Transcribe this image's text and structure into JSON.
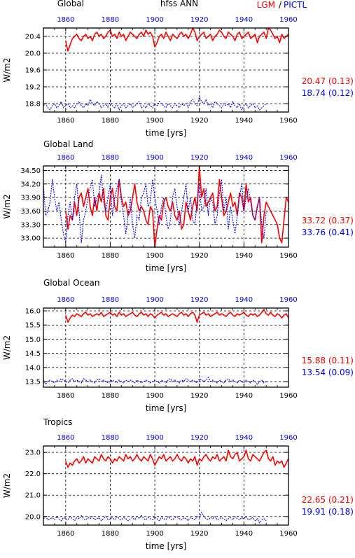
{
  "header": {
    "left_title": "Global",
    "center_title": "hfss ANN",
    "legend_lgm": "LGM",
    "legend_sep": "/",
    "legend_pictl": "PICTL"
  },
  "colors": {
    "lgm": "#ff0000",
    "pictl": "#0000ff",
    "axis": "#000000"
  },
  "chart_data": [
    {
      "type": "line",
      "title": "Global",
      "xlabel": "time [yrs]",
      "ylabel": "W/m2",
      "xlim": [
        1850,
        1960
      ],
      "ylim": [
        18.6,
        20.6
      ],
      "x_ticks_bottom": [
        "1860",
        "1880",
        "1900",
        "1920",
        "1940",
        "1960"
      ],
      "x_ticks_top": [
        "1860",
        "1880",
        "1900",
        "1920",
        "1940",
        "1960"
      ],
      "y_ticks": [
        "20.4",
        "20.0",
        "19.6",
        "19.2",
        "18.8"
      ],
      "y_tick_values": [
        20.4,
        20.0,
        19.6,
        19.2,
        18.8
      ],
      "grid": true,
      "series": [
        {
          "name": "LGM",
          "x_start": 1860,
          "x_end": 1960,
          "values": [
            20.3,
            20.05,
            20.2,
            20.35,
            20.4,
            20.45,
            20.35,
            20.3,
            20.4,
            20.45,
            20.35,
            20.4,
            20.3,
            20.45,
            20.5,
            20.4,
            20.45,
            20.35,
            20.4,
            20.5,
            20.55,
            20.4,
            20.45,
            20.35,
            20.5,
            20.4,
            20.45,
            20.3,
            20.4,
            20.5,
            20.45,
            20.4,
            20.35,
            20.45,
            20.5,
            20.4,
            20.55,
            20.45,
            20.5,
            20.4,
            20.15,
            20.25,
            20.4,
            20.45,
            20.35,
            20.5,
            20.4,
            20.3,
            20.45,
            20.4,
            20.35,
            20.45,
            20.5,
            20.4,
            20.45,
            20.35,
            20.45,
            20.6,
            20.5,
            20.3,
            20.4,
            20.45,
            20.5,
            20.35,
            20.4,
            20.45,
            20.3,
            20.4,
            20.45,
            20.55,
            20.5,
            20.4,
            20.35,
            20.5,
            20.45,
            20.4,
            20.3,
            20.45,
            20.5,
            20.35,
            20.4,
            20.45,
            20.5,
            20.35,
            20.4,
            20.45,
            20.25,
            20.4,
            20.45,
            20.5,
            20.35,
            20.6,
            20.55,
            20.45,
            20.35,
            20.4,
            20.25,
            20.45,
            20.35,
            20.4,
            20.45
          ],
          "mean": "20.47",
          "std": "(0.13)"
        },
        {
          "name": "PICTL",
          "x_start": 1850,
          "x_end": 1950,
          "values": [
            18.75,
            18.8,
            18.7,
            18.65,
            18.75,
            18.8,
            18.7,
            18.75,
            18.85,
            18.7,
            18.75,
            18.8,
            18.7,
            18.75,
            18.7,
            18.8,
            18.85,
            18.75,
            18.7,
            18.8,
            18.75,
            18.9,
            18.8,
            18.75,
            18.85,
            18.8,
            18.7,
            18.75,
            18.8,
            18.7,
            18.85,
            18.75,
            18.7,
            18.8,
            18.65,
            18.75,
            18.8,
            18.7,
            18.75,
            18.8,
            18.7,
            18.75,
            18.8,
            18.85,
            18.7,
            18.75,
            18.7,
            18.8,
            18.75,
            18.7,
            18.8,
            18.75,
            18.85,
            18.8,
            18.75,
            18.7,
            18.8,
            18.75,
            18.7,
            18.8,
            18.75,
            18.7,
            18.8,
            18.75,
            18.8,
            18.7,
            18.85,
            18.9,
            18.8,
            18.75,
            18.95,
            18.85,
            18.8,
            18.9,
            18.75,
            18.8,
            18.7,
            18.85,
            18.8,
            18.75,
            18.7,
            18.8,
            18.75,
            18.8,
            18.7,
            18.85,
            18.75,
            18.7,
            18.8,
            18.65,
            18.75,
            18.8,
            18.7,
            18.75,
            18.8,
            18.7,
            18.75,
            18.65,
            18.7,
            18.75,
            18.8
          ],
          "mean": "18.74",
          "std": "(0.12)"
        }
      ]
    },
    {
      "type": "line",
      "title": "Global Land",
      "xlabel": "time [yrs]",
      "ylabel": "W/m2",
      "xlim": [
        1850,
        1960
      ],
      "ylim": [
        32.8,
        34.6
      ],
      "x_ticks_bottom": [
        "1860",
        "1880",
        "1900",
        "1920",
        "1940",
        "1960"
      ],
      "x_ticks_top": [
        "1860",
        "1880",
        "1900",
        "1920",
        "1940",
        "1960"
      ],
      "y_ticks": [
        "34.50",
        "34.20",
        "33.90",
        "33.60",
        "33.30",
        "33.00"
      ],
      "y_tick_values": [
        34.5,
        34.2,
        33.9,
        33.6,
        33.3,
        33.0
      ],
      "grid": true,
      "series": [
        {
          "name": "LGM",
          "x_start": 1860,
          "x_end": 1960,
          "values": [
            33.6,
            33.2,
            33.5,
            33.4,
            33.8,
            33.5,
            33.9,
            34.0,
            33.7,
            33.9,
            34.1,
            33.7,
            33.5,
            33.9,
            33.6,
            34.0,
            33.8,
            34.1,
            33.5,
            33.4,
            33.9,
            34.1,
            33.7,
            33.6,
            34.3,
            33.9,
            33.7,
            33.8,
            33.5,
            33.6,
            33.9,
            34.2,
            33.8,
            33.6,
            33.7,
            33.6,
            33.4,
            33.3,
            33.7,
            33.6,
            32.8,
            33.2,
            33.5,
            33.4,
            33.8,
            33.9,
            33.7,
            33.6,
            33.8,
            33.5,
            33.4,
            33.6,
            33.2,
            33.3,
            33.8,
            33.6,
            33.4,
            33.7,
            33.9,
            33.6,
            34.6,
            33.9,
            34.1,
            33.7,
            33.8,
            33.9,
            34.0,
            33.6,
            33.7,
            34.3,
            33.9,
            33.5,
            33.6,
            33.8,
            34.0,
            33.7,
            33.8,
            33.5,
            34.0,
            33.9,
            33.6,
            34.2,
            33.8,
            33.9,
            33.5,
            33.4,
            33.7,
            33.9,
            32.9,
            33.5,
            33.8,
            33.7,
            33.6,
            33.5,
            33.4,
            33.3,
            33.0,
            32.9,
            33.4,
            33.9,
            33.8
          ],
          "mean": "33.72",
          "std": "(0.37)"
        },
        {
          "name": "PICTL",
          "x_start": 1850,
          "x_end": 1950,
          "values": [
            34.2,
            33.5,
            33.6,
            33.8,
            34.3,
            33.9,
            33.6,
            33.8,
            33.4,
            33.1,
            32.9,
            33.5,
            33.8,
            33.4,
            33.9,
            34.2,
            33.6,
            32.9,
            33.4,
            33.6,
            33.9,
            34.1,
            34.3,
            33.7,
            33.9,
            34.0,
            34.4,
            33.8,
            33.6,
            33.9,
            34.2,
            33.5,
            33.9,
            34.1,
            34.3,
            33.8,
            33.5,
            33.1,
            33.5,
            33.9,
            33.3,
            33.0,
            33.5,
            33.4,
            33.9,
            34.0,
            34.2,
            33.7,
            33.8,
            34.3,
            33.9,
            33.6,
            33.3,
            33.7,
            33.9,
            33.5,
            33.2,
            33.4,
            33.9,
            34.1,
            33.7,
            33.3,
            33.6,
            33.9,
            34.2,
            33.6,
            33.9,
            33.4,
            33.3,
            33.8,
            34.2,
            33.6,
            33.7,
            34.1,
            33.5,
            33.9,
            33.8,
            33.3,
            33.5,
            34.0,
            34.3,
            33.6,
            33.9,
            33.2,
            33.7,
            33.4,
            33.1,
            33.5,
            33.9,
            34.2,
            33.6,
            33.9,
            34.1,
            33.8,
            33.5,
            33.4,
            33.7,
            33.9,
            33.3,
            33.0,
            33.6
          ],
          "mean": "33.76",
          "std": "(0.41)"
        }
      ]
    },
    {
      "type": "line",
      "title": "Global Ocean",
      "xlabel": "time [yrs]",
      "ylabel": "W/m2",
      "xlim": [
        1850,
        1960
      ],
      "ylim": [
        13.3,
        16.1
      ],
      "x_ticks_bottom": [
        "1860",
        "1880",
        "1900",
        "1920",
        "1940",
        "1960"
      ],
      "x_ticks_top": [
        "1860",
        "1880",
        "1900",
        "1920",
        "1940",
        "1960"
      ],
      "y_ticks": [
        "16.0",
        "15.5",
        "15.0",
        "14.5",
        "14.0",
        "13.5"
      ],
      "y_tick_values": [
        16.0,
        15.5,
        15.0,
        14.5,
        14.0,
        13.5
      ],
      "grid": true,
      "series": [
        {
          "name": "LGM",
          "x_start": 1860,
          "x_end": 1960,
          "values": [
            15.85,
            15.6,
            15.75,
            15.85,
            15.8,
            15.9,
            15.85,
            15.8,
            15.9,
            15.95,
            15.85,
            15.9,
            15.8,
            15.85,
            15.9,
            15.85,
            15.95,
            15.8,
            15.85,
            15.9,
            15.95,
            15.85,
            15.9,
            15.8,
            15.95,
            15.85,
            15.9,
            15.8,
            15.85,
            15.9,
            15.95,
            15.85,
            15.8,
            15.9,
            15.95,
            15.85,
            15.9,
            15.8,
            15.9,
            15.85,
            15.75,
            15.85,
            15.9,
            15.95,
            15.85,
            15.9,
            15.8,
            15.85,
            15.9,
            15.85,
            15.8,
            15.9,
            15.95,
            15.85,
            15.9,
            15.8,
            15.9,
            15.95,
            15.85,
            15.6,
            15.85,
            15.9,
            15.95,
            15.85,
            15.9,
            15.8,
            15.85,
            15.9,
            15.95,
            15.85,
            15.9,
            15.85,
            15.8,
            15.9,
            15.95,
            15.85,
            15.8,
            15.9,
            15.85,
            15.9,
            15.95,
            15.85,
            15.8,
            15.9,
            15.85,
            15.9,
            15.8,
            15.85,
            15.95,
            16.05,
            15.9,
            15.85,
            15.95,
            15.85,
            15.8,
            15.9,
            15.85,
            15.75,
            15.85,
            15.9,
            15.75
          ],
          "mean": "15.88",
          "std": "(0.11)"
        },
        {
          "name": "PICTL",
          "x_start": 1850,
          "x_end": 1950,
          "values": [
            13.55,
            13.4,
            13.5,
            13.55,
            13.5,
            13.45,
            13.55,
            13.5,
            13.6,
            13.55,
            13.5,
            13.45,
            13.55,
            13.6,
            13.5,
            13.55,
            13.5,
            13.45,
            13.6,
            13.55,
            13.5,
            13.55,
            13.5,
            13.45,
            13.55,
            13.6,
            13.5,
            13.55,
            13.5,
            13.45,
            13.5,
            13.55,
            13.5,
            13.45,
            13.55,
            13.5,
            13.45,
            13.55,
            13.5,
            13.55,
            13.5,
            13.45,
            13.55,
            13.5,
            13.45,
            13.5,
            13.55,
            13.5,
            13.45,
            13.5,
            13.55,
            13.5,
            13.45,
            13.55,
            13.5,
            13.45,
            13.55,
            13.6,
            13.5,
            13.55,
            13.5,
            13.45,
            13.55,
            13.5,
            13.6,
            13.55,
            13.5,
            13.55,
            13.5,
            13.45,
            13.6,
            13.55,
            13.5,
            13.55,
            13.65,
            13.5,
            13.55,
            13.5,
            13.45,
            13.55,
            13.5,
            13.45,
            13.55,
            13.6,
            13.5,
            13.55,
            13.5,
            13.45,
            13.55,
            13.5,
            13.45,
            13.55,
            13.5,
            13.45,
            13.55,
            13.5,
            13.4,
            13.5,
            13.55,
            13.45,
            13.5
          ],
          "mean": "13.54",
          "std": "(0.09)"
        }
      ]
    },
    {
      "type": "line",
      "title": "Tropics",
      "xlabel": "time [yrs]",
      "ylabel": "W/m2",
      "xlim": [
        1850,
        1960
      ],
      "ylim": [
        19.6,
        23.3
      ],
      "x_ticks_bottom": [
        "1860",
        "1880",
        "1900",
        "1920",
        "1940",
        "1960"
      ],
      "x_ticks_top": [
        "1860",
        "1880",
        "1900",
        "1920",
        "1940",
        "1960"
      ],
      "y_ticks": [
        "23.0",
        "22.0",
        "21.0",
        "20.0"
      ],
      "y_tick_values": [
        23.0,
        22.0,
        21.0,
        20.0
      ],
      "grid": true,
      "series": [
        {
          "name": "LGM",
          "x_start": 1860,
          "x_end": 1960,
          "values": [
            22.6,
            22.3,
            22.5,
            22.4,
            22.6,
            22.7,
            22.5,
            22.6,
            22.8,
            22.5,
            22.7,
            22.6,
            22.5,
            22.8,
            22.7,
            22.6,
            22.9,
            22.7,
            22.6,
            22.8,
            22.7,
            22.5,
            22.7,
            22.6,
            22.8,
            22.7,
            22.6,
            22.9,
            22.7,
            22.8,
            22.6,
            22.7,
            22.9,
            22.7,
            22.6,
            22.8,
            22.7,
            22.6,
            22.9,
            22.7,
            22.4,
            22.6,
            22.8,
            22.7,
            22.9,
            22.6,
            22.7,
            22.8,
            22.6,
            22.7,
            22.9,
            22.7,
            22.6,
            22.8,
            22.7,
            22.5,
            22.7,
            22.6,
            22.8,
            22.4,
            22.7,
            22.6,
            22.8,
            22.9,
            22.7,
            22.6,
            22.8,
            22.7,
            22.9,
            22.6,
            22.7,
            22.8,
            22.6,
            23.1,
            22.8,
            22.7,
            22.9,
            23.0,
            22.6,
            22.7,
            22.8,
            23.1,
            22.7,
            22.6,
            22.9,
            22.8,
            22.7,
            22.6,
            22.8,
            23.0,
            23.1,
            22.7,
            22.6,
            22.8,
            22.4,
            22.6,
            22.5,
            22.6,
            22.3,
            22.5,
            22.7
          ],
          "mean": "22.65",
          "std": "(0.21)"
        },
        {
          "name": "PICTL",
          "x_start": 1850,
          "x_end": 1950,
          "values": [
            19.9,
            20.0,
            19.85,
            19.9,
            19.95,
            19.85,
            20.0,
            19.9,
            19.8,
            19.95,
            19.9,
            19.85,
            20.0,
            19.9,
            19.8,
            19.95,
            19.9,
            20.05,
            19.9,
            19.85,
            19.95,
            19.9,
            20.0,
            19.85,
            19.9,
            19.95,
            19.8,
            19.9,
            20.0,
            19.85,
            19.9,
            19.95,
            19.85,
            20.0,
            19.9,
            19.85,
            19.95,
            19.9,
            19.8,
            19.9,
            19.95,
            19.85,
            20.0,
            19.9,
            20.05,
            19.9,
            19.85,
            19.95,
            19.9,
            19.85,
            20.0,
            19.9,
            19.8,
            19.95,
            19.9,
            19.85,
            20.0,
            19.9,
            19.85,
            19.95,
            20.0,
            19.9,
            19.85,
            19.95,
            19.9,
            19.8,
            19.95,
            19.9,
            19.85,
            20.0,
            19.95,
            20.2,
            20.0,
            19.9,
            19.85,
            19.95,
            19.9,
            20.0,
            19.85,
            19.9,
            19.95,
            19.9,
            19.8,
            19.9,
            19.95,
            19.85,
            20.0,
            19.9,
            19.85,
            19.95,
            19.9,
            20.0,
            19.85,
            19.9,
            19.95,
            19.8,
            19.9,
            19.7,
            19.85,
            19.9,
            19.8
          ],
          "mean": "19.91",
          "std": "(0.18)"
        }
      ]
    }
  ]
}
